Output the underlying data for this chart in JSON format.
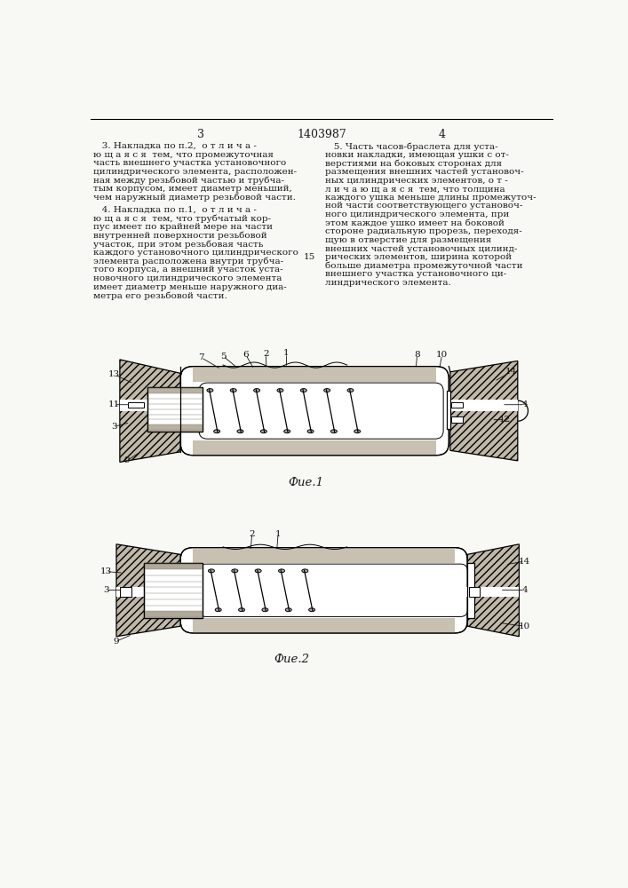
{
  "page_color": "#f8f8f5",
  "text_color": "#1a1a1a",
  "page_num_left": "3",
  "patent_num": "1403987",
  "page_num_right": "4",
  "fig1_caption": "Фие.1",
  "fig2_caption": "Фие.2",
  "left_column_text": [
    "   3. Накладка по п.2,  о т л и ч а -",
    "ю щ а я с я  тем, что промежуточная",
    "часть внешнего участка установочного",
    "цилиндрического элемента, расположен-",
    "ная между резьбовой частью и трубча-",
    "тым корпусом, имеет диаметр меньший,",
    "чем наружный диаметр резьбовой части.",
    "",
    "   4. Накладка по п.1,  о т л и ч а -",
    "ю щ а я с я  тем, что трубчатый кор-",
    "пус имеет по крайней мере на части",
    "внутренней поверхности резьбовой",
    "участок, при этом резьбовая часть",
    "каждого установочного цилиндрического",
    "элемента расположена внутри трубча-",
    "того корпуса, а внешний участок уста-",
    "новочного цилиндрического элемента",
    "имеет диаметр меньше наружного диа-",
    "метра его резьбовой части."
  ],
  "right_column_text": [
    "   5. Часть часов-браслета для уста-",
    "новки накладки, имеющая ушки с от-",
    "верстиями на боковых сторонах для",
    "размещения внешних частей установоч-",
    "ных цилиндрических элементов, о т -",
    "л и ч а ю щ а я с я  тем, что толщина",
    "каждого ушка меньше длины промежуточ-",
    "ной части соответствующего установоч-",
    "ного цилиндрического элемента, при",
    "этом каждое ушко имеет на боковой",
    "стороне радиальную прорезь, переходя-",
    "щую в отверстие для размещения",
    "внешних частей установочных цилинд-",
    "рических элементов, ширина которой",
    "больше диаметра промежуточной части",
    "внешнего участка установочного ци-",
    "линдрического элемента."
  ],
  "right_col_num": "15"
}
